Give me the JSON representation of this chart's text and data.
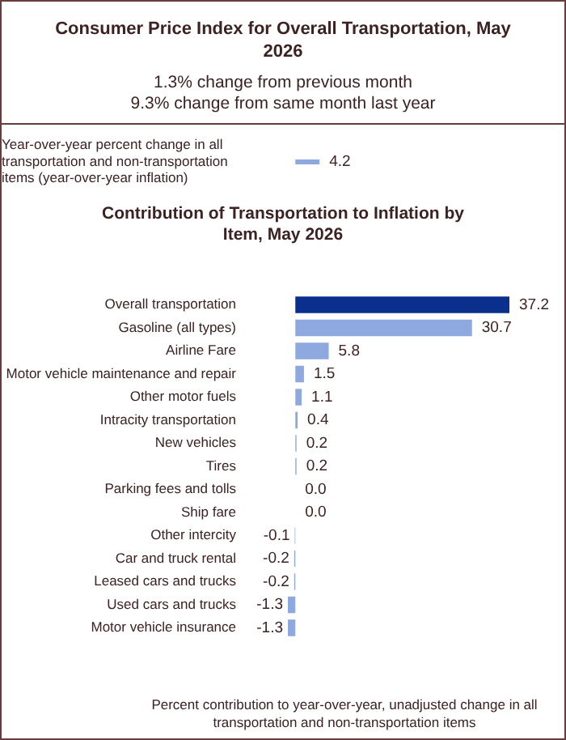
{
  "chart_data": [
    {
      "type": "bar",
      "orientation": "horizontal",
      "title": "Consumer Price Index for Overall Transportation, May 2026",
      "subtitle": "1.3% change from previous month\n9.3% change from same month last year",
      "categories": [
        "Year-over-year percent change in all transportation and non-transportation items (year-over-year inflation)"
      ],
      "values": [
        4.2
      ],
      "color": "#8ea9df",
      "data_labels": true
    },
    {
      "type": "bar",
      "orientation": "horizontal",
      "title": "Contribution of Transportation to Inflation by Item, May 2026",
      "categories": [
        "Overall transportation",
        "Gasoline (all types)",
        "Airline Fare",
        "Motor vehicle maintenance and repair",
        "Other motor fuels",
        "Intracity transportation",
        "New vehicles",
        "Tires",
        "Parking fees and tolls",
        "Ship fare",
        "Other intercity",
        "Car and truck rental",
        "Leased cars and trucks",
        "Used cars and trucks",
        "Motor vehicle insurance"
      ],
      "values": [
        37.2,
        30.7,
        5.8,
        1.5,
        1.1,
        0.4,
        0.2,
        0.2,
        0.0,
        0.0,
        -0.1,
        -0.2,
        -0.2,
        -1.3,
        -1.3
      ],
      "colors": [
        "#0a2f8c",
        "#8ea9df",
        "#8ea9df",
        "#8ea9df",
        "#8ea9df",
        "#8ea9df",
        "#8ea9df",
        "#8ea9df",
        "#8ea9df",
        "#8ea9df",
        "#8ea9df",
        "#8ea9df",
        "#8ea9df",
        "#8ea9df",
        "#8ea9df"
      ],
      "data_labels": true,
      "value_labels": [
        "37.2",
        "30.7",
        "5.8",
        "1.5",
        "1.1",
        "0.4",
        "0.2",
        "0.2",
        "0.0",
        "0.0",
        "-0.1",
        "-0.2",
        "-0.2",
        "-1.3",
        "-1.3"
      ],
      "annotations": [
        "Percent contribution to year-over-year, unadjusted change in all transportation and non-transportation items"
      ]
    }
  ]
}
